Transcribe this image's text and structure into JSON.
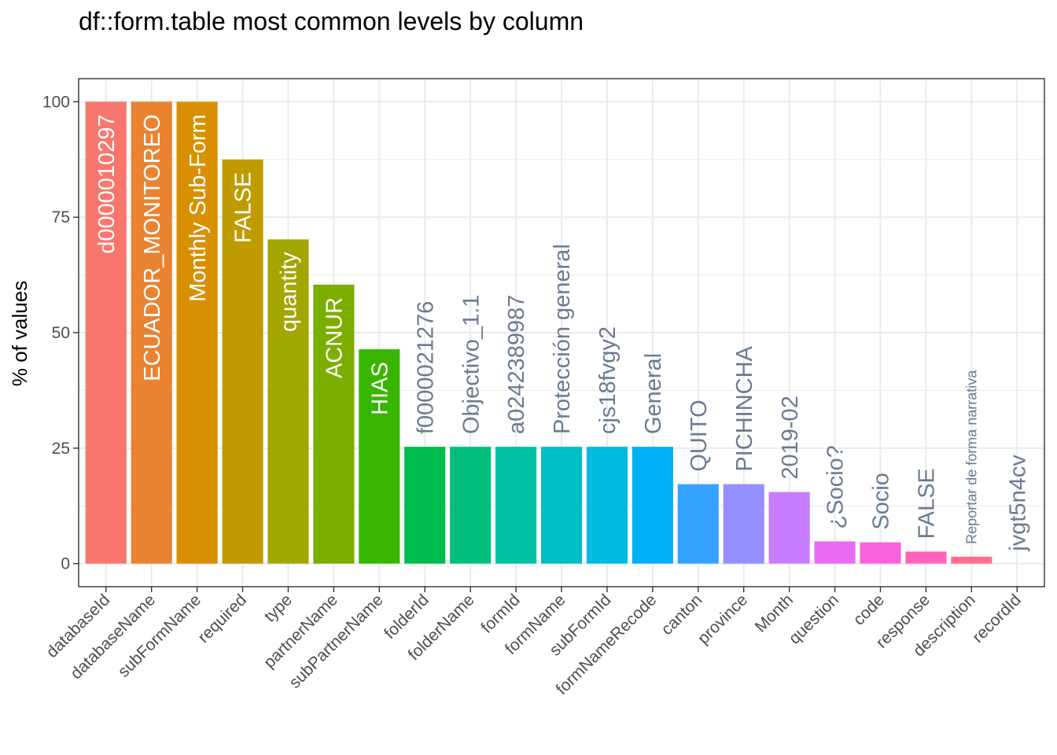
{
  "chart_data": {
    "type": "bar",
    "title": "df::form.table most common levels by column",
    "xlabel": "",
    "ylabel": "% of values",
    "ylim": [
      -5,
      105
    ],
    "yticks": [
      0,
      25,
      50,
      75,
      100
    ],
    "grid": true,
    "legend": "none",
    "categories": [
      "databaseId",
      "databaseName",
      "subFormName",
      "required",
      "type",
      "partnerName",
      "subPartnerName",
      "folderId",
      "folderName",
      "formId",
      "formName",
      "subFormId",
      "formNameRecode",
      "canton",
      "province",
      "Month",
      "question",
      "code",
      "response",
      "description",
      "recordId"
    ],
    "values": [
      100,
      100,
      100,
      87.5,
      70.2,
      60.4,
      46.4,
      25.3,
      25.3,
      25.3,
      25.3,
      25.3,
      25.3,
      17.2,
      17.2,
      15.5,
      4.8,
      4.6,
      2.6,
      1.5,
      0
    ],
    "bar_labels": [
      "d0000010297",
      "ECUADOR_MONITOREO",
      "Monthly Sub-Form",
      "FALSE",
      "quantity",
      "ACNUR",
      "HIAS",
      "f0000021276",
      "Objectivo_1.1",
      "a0242389987",
      "Protección general",
      "cjs18fvgy2",
      "General",
      "QUITO",
      "PICHINCHA",
      "2019-02",
      "¿Socio?",
      "Socio",
      "FALSE",
      "Reportar de forma narrativa",
      "jvgt5n4cv"
    ],
    "colors": [
      "#F8766D",
      "#EA8331",
      "#D89000",
      "#C09B00",
      "#A3A500",
      "#7CAE00",
      "#39B600",
      "#00BB4E",
      "#00BF7D",
      "#00C1A3",
      "#00BFC4",
      "#00BAE0",
      "#00B0F6",
      "#35A2FF",
      "#9590FF",
      "#C77CFF",
      "#E76BF3",
      "#FA62DB",
      "#FF62BC",
      "#FF6C90",
      "#FF6C90"
    ],
    "label_colors": {
      "inside": "#ffffff",
      "outside": "#6b7b8f"
    }
  }
}
